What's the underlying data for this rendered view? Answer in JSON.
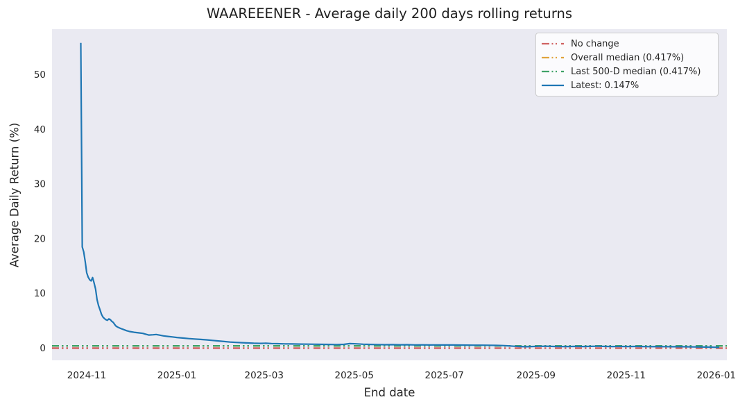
{
  "title": "WAAREEENER - Average daily 200 days rolling returns",
  "colors": {
    "figure_bg": "#ffffff",
    "axes_bg": "#eaeaf2",
    "text": "#262626",
    "latest_line": "#1f77b4",
    "no_change_line": "#d06262",
    "overall_median_line": "#e0a33c",
    "last_500d_median_line": "#40a368"
  },
  "chart_data": {
    "type": "line",
    "title": "WAAREEENER - Average daily 200 days rolling returns",
    "xlabel": "End date",
    "ylabel": "Average Daily Return (%)",
    "grid": false,
    "legend_position": "upper right",
    "xlim": [
      "2024-10-08",
      "2026-01-08"
    ],
    "ylim": [
      -2.2,
      58.3
    ],
    "y_ticks": [
      0,
      10,
      20,
      30,
      40,
      50
    ],
    "x_ticks": [
      {
        "label": "2024-11",
        "date": "2024-11-01"
      },
      {
        "label": "2025-01",
        "date": "2025-01-01"
      },
      {
        "label": "2025-03",
        "date": "2025-03-01"
      },
      {
        "label": "2025-05",
        "date": "2025-05-01"
      },
      {
        "label": "2025-07",
        "date": "2025-07-01"
      },
      {
        "label": "2025-09",
        "date": "2025-09-01"
      },
      {
        "label": "2025-11",
        "date": "2025-11-01"
      },
      {
        "label": "2026-01",
        "date": "2026-01-01"
      }
    ],
    "reference_lines": [
      {
        "name": "No change",
        "value": 0,
        "color": "#d06262",
        "style": "dashdotdot"
      },
      {
        "name": "Overall median (0.417%)",
        "value": 0.417,
        "color": "#e0a33c",
        "style": "dashdotdot"
      },
      {
        "name": "Last 500-D median (0.417%)",
        "value": 0.417,
        "color": "#40a368",
        "style": "dashdotdot"
      }
    ],
    "legend": [
      {
        "label": "No change",
        "color": "#d06262",
        "style": "dashdotdot"
      },
      {
        "label": "Overall median (0.417%)",
        "color": "#e0a33c",
        "style": "dashdotdot"
      },
      {
        "label": "Last 500-D median (0.417%)",
        "color": "#40a368",
        "style": "dashdotdot"
      },
      {
        "label": "Latest: 0.147%",
        "color": "#1f77b4",
        "style": "solid"
      }
    ],
    "overall_median_pct": 0.417,
    "last_500d_median_pct": 0.417,
    "latest_pct": 0.147,
    "series": [
      {
        "name": "Latest: 0.147%",
        "color": "#1f77b4",
        "style": "solid",
        "points": [
          [
            "2024-10-28",
            55.8
          ],
          [
            "2024-10-29",
            18.5
          ],
          [
            "2024-10-30",
            17.6
          ],
          [
            "2024-10-31",
            15.8
          ],
          [
            "2024-11-01",
            13.8
          ],
          [
            "2024-11-02",
            13.0
          ],
          [
            "2024-11-03",
            12.5
          ],
          [
            "2024-11-04",
            12.3
          ],
          [
            "2024-11-05",
            12.9
          ],
          [
            "2024-11-06",
            11.9
          ],
          [
            "2024-11-07",
            10.8
          ],
          [
            "2024-11-08",
            8.9
          ],
          [
            "2024-11-09",
            7.8
          ],
          [
            "2024-11-10",
            7.0
          ],
          [
            "2024-11-11",
            6.2
          ],
          [
            "2024-11-12",
            5.7
          ],
          [
            "2024-11-13",
            5.4
          ],
          [
            "2024-11-14",
            5.2
          ],
          [
            "2024-11-15",
            5.1
          ],
          [
            "2024-11-16",
            5.35
          ],
          [
            "2024-11-17",
            5.2
          ],
          [
            "2024-11-18",
            4.9
          ],
          [
            "2024-11-19",
            4.7
          ],
          [
            "2024-11-20",
            4.3
          ],
          [
            "2024-11-21",
            4.0
          ],
          [
            "2024-11-22",
            3.85
          ],
          [
            "2024-11-24",
            3.6
          ],
          [
            "2024-11-26",
            3.4
          ],
          [
            "2024-11-28",
            3.2
          ],
          [
            "2024-11-30",
            3.05
          ],
          [
            "2024-12-03",
            2.9
          ],
          [
            "2024-12-06",
            2.8
          ],
          [
            "2024-12-09",
            2.7
          ],
          [
            "2024-12-11",
            2.55
          ],
          [
            "2024-12-13",
            2.4
          ],
          [
            "2024-12-16",
            2.45
          ],
          [
            "2024-12-18",
            2.5
          ],
          [
            "2024-12-20",
            2.4
          ],
          [
            "2024-12-23",
            2.25
          ],
          [
            "2024-12-26",
            2.15
          ],
          [
            "2024-12-29",
            2.05
          ],
          [
            "2025-01-01",
            1.95
          ],
          [
            "2025-01-05",
            1.85
          ],
          [
            "2025-01-09",
            1.75
          ],
          [
            "2025-01-13",
            1.68
          ],
          [
            "2025-01-17",
            1.6
          ],
          [
            "2025-01-21",
            1.52
          ],
          [
            "2025-01-25",
            1.42
          ],
          [
            "2025-01-29",
            1.32
          ],
          [
            "2025-02-02",
            1.22
          ],
          [
            "2025-02-06",
            1.12
          ],
          [
            "2025-02-10",
            1.05
          ],
          [
            "2025-02-14",
            1.0
          ],
          [
            "2025-02-18",
            0.95
          ],
          [
            "2025-02-22",
            0.9
          ],
          [
            "2025-02-26",
            0.87
          ],
          [
            "2025-03-02",
            0.9
          ],
          [
            "2025-03-06",
            0.85
          ],
          [
            "2025-03-10",
            0.82
          ],
          [
            "2025-03-15",
            0.79
          ],
          [
            "2025-03-20",
            0.77
          ],
          [
            "2025-03-25",
            0.75
          ],
          [
            "2025-03-30",
            0.73
          ],
          [
            "2025-04-04",
            0.72
          ],
          [
            "2025-04-09",
            0.7
          ],
          [
            "2025-04-14",
            0.68
          ],
          [
            "2025-04-19",
            0.66
          ],
          [
            "2025-04-24",
            0.7
          ],
          [
            "2025-04-28",
            0.84
          ],
          [
            "2025-05-02",
            0.8
          ],
          [
            "2025-05-07",
            0.72
          ],
          [
            "2025-05-12",
            0.68
          ],
          [
            "2025-05-17",
            0.66
          ],
          [
            "2025-05-22",
            0.64
          ],
          [
            "2025-05-27",
            0.65
          ],
          [
            "2025-06-01",
            0.62
          ],
          [
            "2025-06-06",
            0.63
          ],
          [
            "2025-06-11",
            0.6
          ],
          [
            "2025-06-16",
            0.61
          ],
          [
            "2025-06-21",
            0.59
          ],
          [
            "2025-06-26",
            0.6
          ],
          [
            "2025-07-01",
            0.58
          ],
          [
            "2025-07-06",
            0.58
          ],
          [
            "2025-07-11",
            0.57
          ],
          [
            "2025-07-16",
            0.56
          ],
          [
            "2025-07-21",
            0.55
          ],
          [
            "2025-07-26",
            0.54
          ],
          [
            "2025-07-31",
            0.53
          ],
          [
            "2025-08-05",
            0.51
          ],
          [
            "2025-08-09",
            0.48
          ],
          [
            "2025-08-13",
            0.43
          ],
          [
            "2025-08-17",
            0.36
          ],
          [
            "2025-08-21",
            0.3
          ],
          [
            "2025-08-25",
            0.27
          ],
          [
            "2025-08-29",
            0.3
          ],
          [
            "2025-09-03",
            0.34
          ],
          [
            "2025-09-08",
            0.36
          ],
          [
            "2025-09-13",
            0.32
          ],
          [
            "2025-09-18",
            0.29
          ],
          [
            "2025-09-23",
            0.31
          ],
          [
            "2025-09-28",
            0.33
          ],
          [
            "2025-10-03",
            0.3
          ],
          [
            "2025-10-08",
            0.33
          ],
          [
            "2025-10-13",
            0.35
          ],
          [
            "2025-10-18",
            0.32
          ],
          [
            "2025-10-23",
            0.3
          ],
          [
            "2025-10-28",
            0.32
          ],
          [
            "2025-11-02",
            0.3
          ],
          [
            "2025-11-07",
            0.32
          ],
          [
            "2025-11-12",
            0.3
          ],
          [
            "2025-11-17",
            0.28
          ],
          [
            "2025-11-22",
            0.3
          ],
          [
            "2025-11-27",
            0.28
          ],
          [
            "2025-12-02",
            0.27
          ],
          [
            "2025-12-07",
            0.28
          ],
          [
            "2025-12-12",
            0.26
          ],
          [
            "2025-12-17",
            0.23
          ],
          [
            "2025-12-22",
            0.21
          ],
          [
            "2025-12-27",
            0.19
          ],
          [
            "2026-01-03",
            0.147
          ]
        ]
      }
    ]
  }
}
